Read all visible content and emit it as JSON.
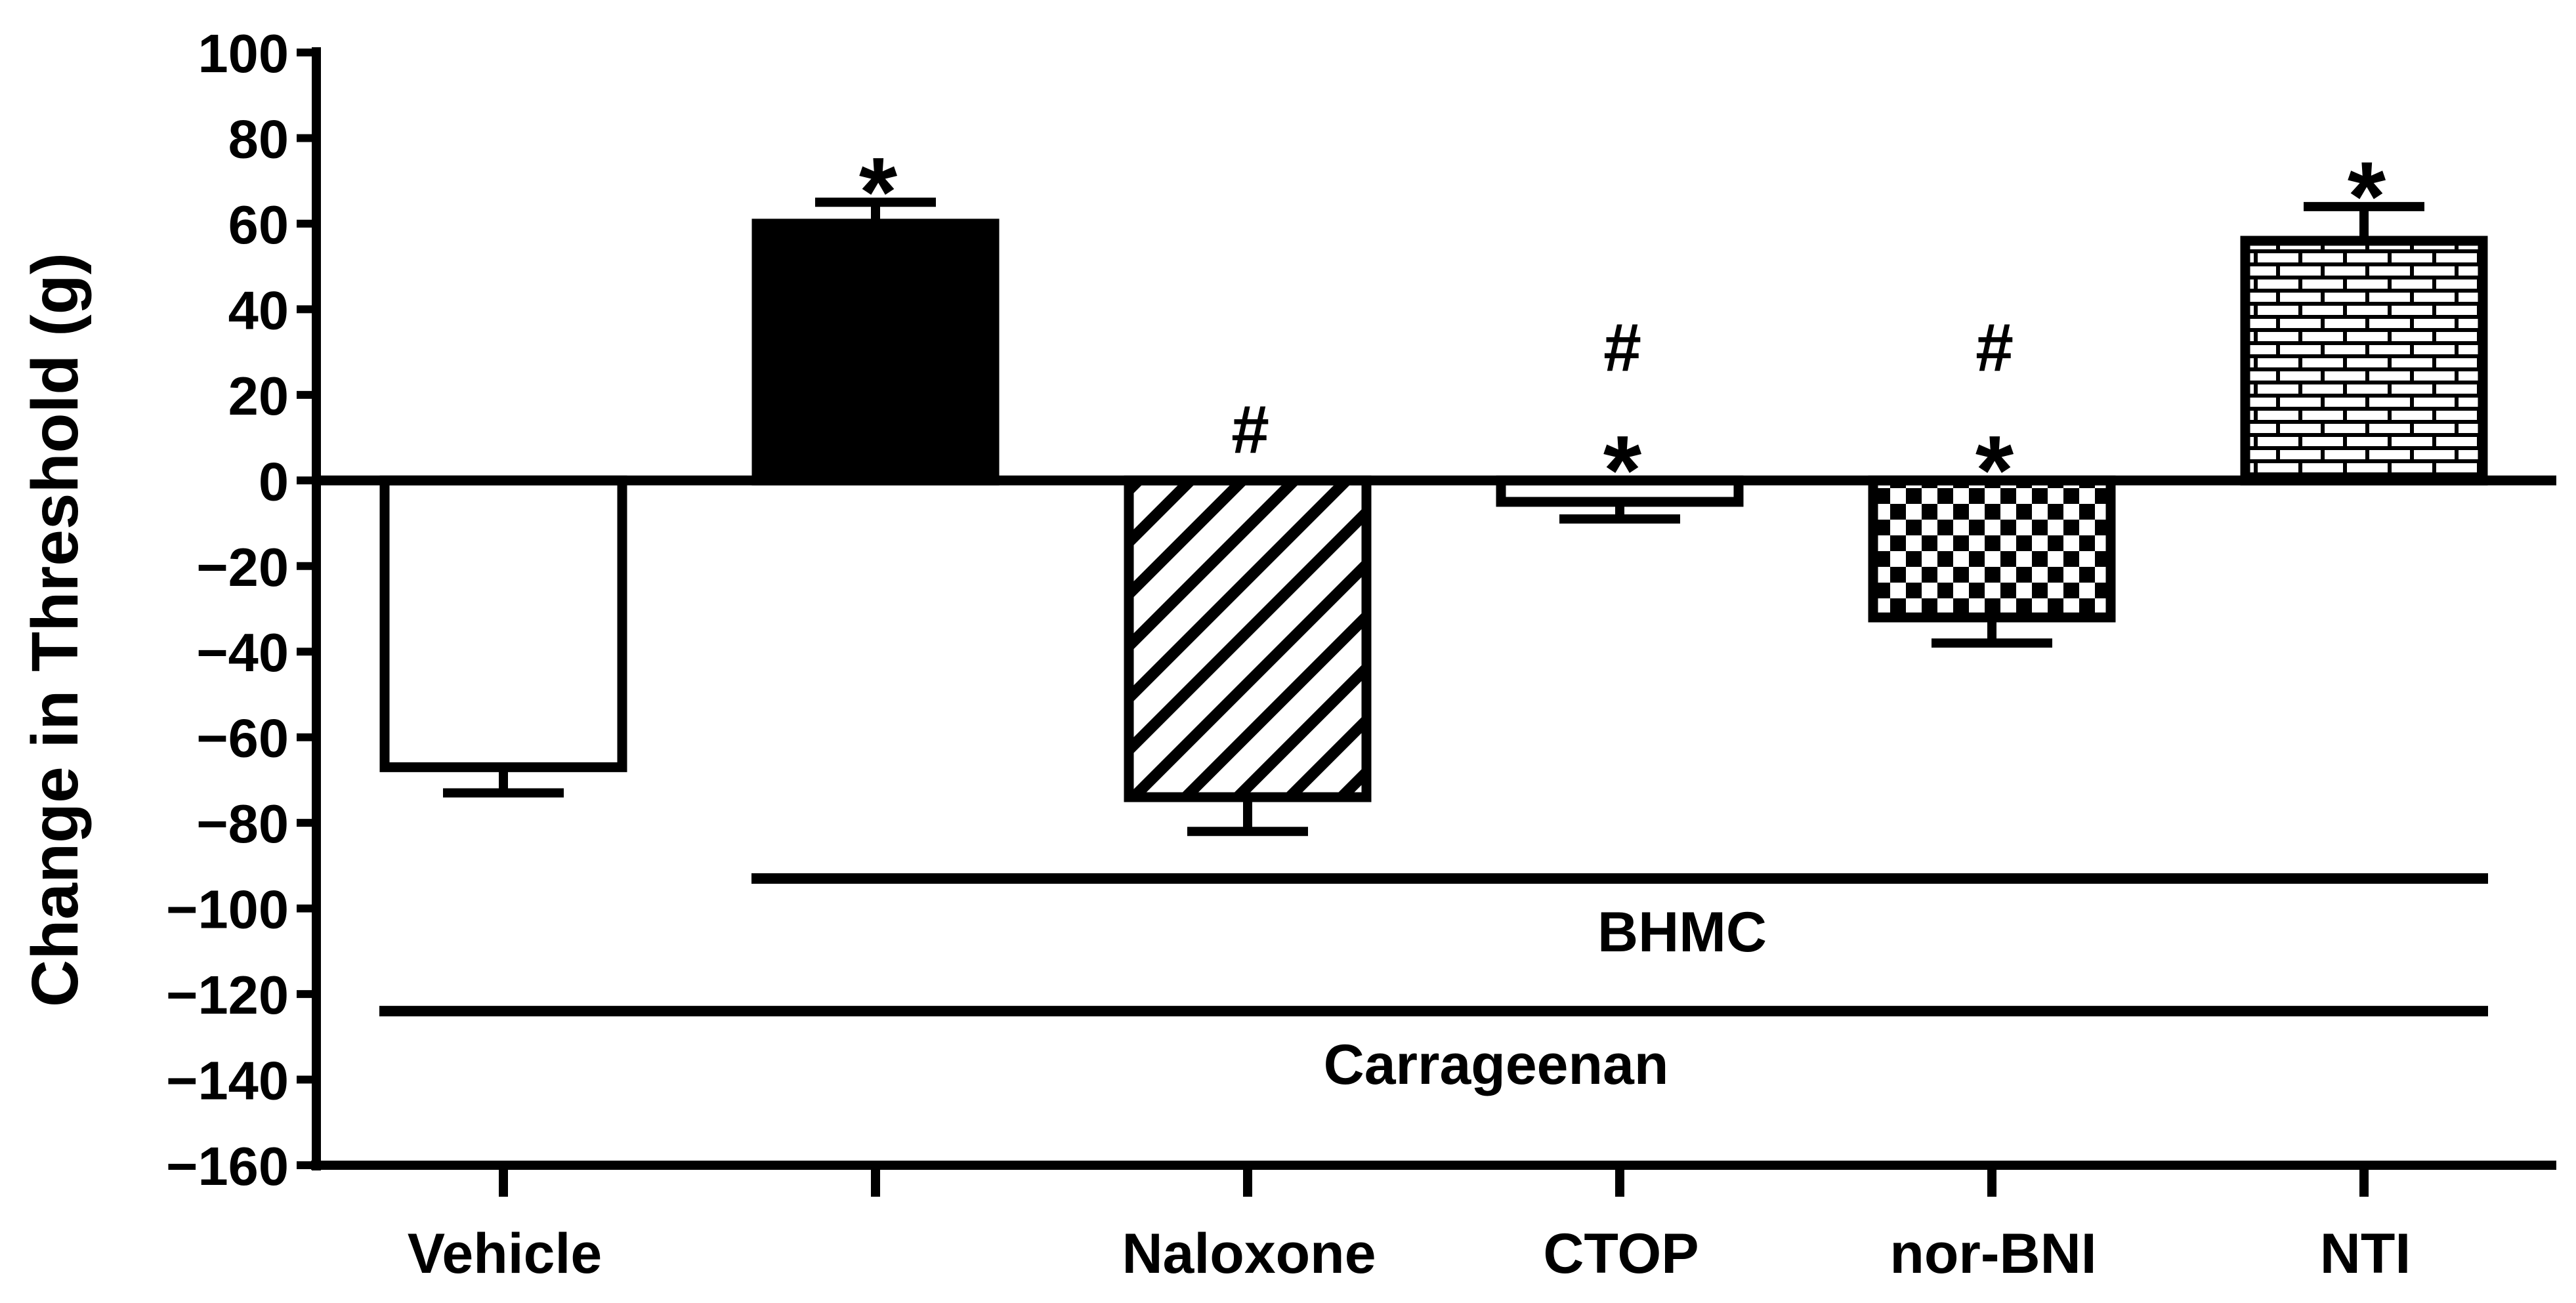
{
  "chart_data": {
    "type": "bar",
    "title": "",
    "xlabel": "",
    "ylabel": "Change in Threshold (g)",
    "ylim": [
      -160,
      100
    ],
    "ytick_step": 20,
    "grid": false,
    "categories": [
      "Vehicle",
      "",
      "Naloxone",
      "CTOP",
      "nor-BNI",
      "NTI"
    ],
    "values": [
      -67,
      60,
      -74,
      -5,
      -32,
      56
    ],
    "errors": [
      6,
      5,
      8,
      4,
      6,
      8
    ],
    "fills": [
      "white",
      "solid-black",
      "diagonal-hatch",
      "white",
      "checkerboard",
      "brick"
    ],
    "annotations": [
      [
        "",
        ""
      ],
      [
        "*",
        ""
      ],
      [
        "#",
        ""
      ],
      [
        "#",
        "*"
      ],
      [
        "#",
        "*"
      ],
      [
        "*",
        ""
      ]
    ],
    "group_labels": [
      {
        "label": "BHMC",
        "from_category": 1,
        "to_category": 5,
        "y": -93
      },
      {
        "label": "Carrageenan",
        "from_category": 0,
        "to_category": 5,
        "y": -124
      }
    ]
  }
}
